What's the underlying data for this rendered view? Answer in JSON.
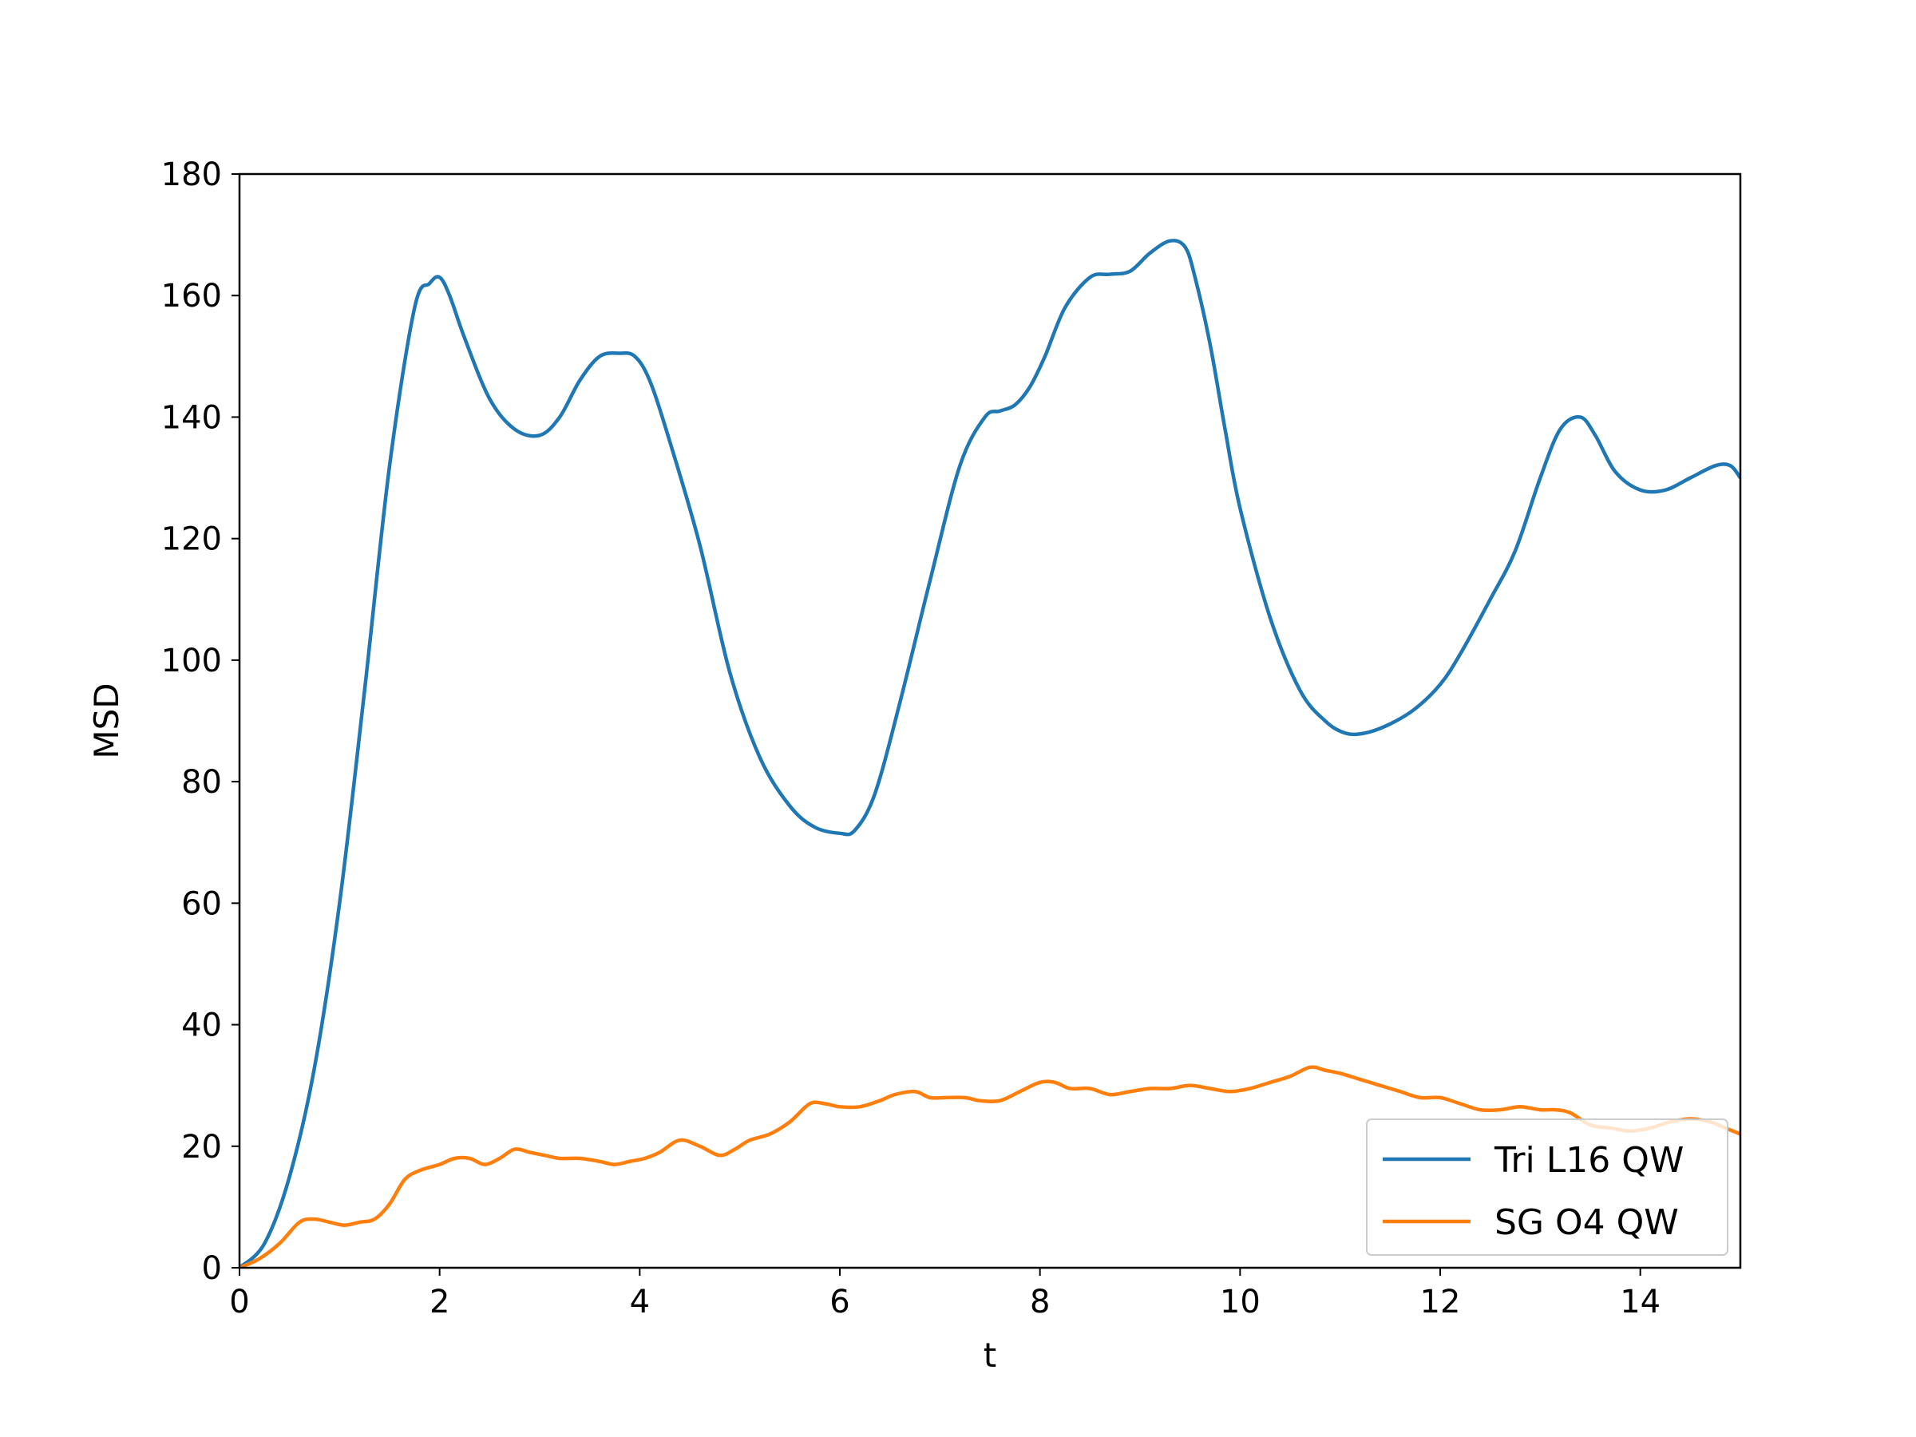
{
  "chart_data": {
    "type": "line",
    "title": "",
    "xlabel": "t",
    "ylabel": "MSD",
    "xlim": [
      0,
      15
    ],
    "ylim": [
      0,
      180
    ],
    "xticks": [
      0,
      2,
      4,
      6,
      8,
      10,
      12,
      14
    ],
    "yticks": [
      0,
      20,
      40,
      60,
      80,
      100,
      120,
      140,
      160,
      180
    ],
    "grid": false,
    "legend_position": "lower-right",
    "series": [
      {
        "name": "Tri L16 QW",
        "color": "#1f77b4",
        "x": [
          0,
          0.25,
          0.5,
          0.75,
          1.0,
          1.25,
          1.5,
          1.75,
          1.9,
          2.0,
          2.1,
          2.25,
          2.5,
          2.75,
          3.0,
          3.2,
          3.4,
          3.6,
          3.8,
          3.95,
          4.1,
          4.3,
          4.6,
          4.9,
          5.2,
          5.5,
          5.75,
          6.0,
          6.15,
          6.35,
          6.6,
          6.9,
          7.2,
          7.45,
          7.6,
          7.75,
          7.9,
          8.05,
          8.25,
          8.5,
          8.7,
          8.9,
          9.1,
          9.3,
          9.45,
          9.55,
          9.7,
          9.85,
          10.0,
          10.3,
          10.6,
          10.85,
          11.05,
          11.25,
          11.5,
          11.75,
          12.0,
          12.2,
          12.5,
          12.75,
          13.0,
          13.2,
          13.4,
          13.55,
          13.75,
          14.0,
          14.25,
          14.5,
          14.75,
          14.9,
          15.0
        ],
        "y": [
          0,
          4,
          15,
          33,
          60,
          95,
          132,
          158,
          162,
          163,
          160,
          153,
          143,
          138,
          137,
          140,
          146,
          150,
          150.5,
          150,
          146,
          136,
          119,
          98,
          84,
          76,
          72.5,
          71.5,
          72,
          78,
          93,
          113,
          132,
          140,
          141,
          142,
          145,
          150,
          158,
          163,
          163.5,
          164,
          167,
          169,
          168,
          163,
          152,
          138,
          125,
          107,
          95,
          90,
          88,
          88,
          89.5,
          92,
          96,
          101,
          110,
          118,
          130,
          138,
          140,
          137,
          131,
          128,
          128,
          130,
          132,
          132,
          130
        ]
      },
      {
        "name": "SG O4 QW",
        "color": "#ff7f0e",
        "x": [
          0,
          0.2,
          0.4,
          0.6,
          0.75,
          0.9,
          1.05,
          1.2,
          1.35,
          1.5,
          1.65,
          1.8,
          2.0,
          2.15,
          2.3,
          2.45,
          2.6,
          2.75,
          2.9,
          3.05,
          3.2,
          3.4,
          3.6,
          3.75,
          3.9,
          4.05,
          4.2,
          4.4,
          4.6,
          4.8,
          4.95,
          5.1,
          5.3,
          5.5,
          5.7,
          5.85,
          6.0,
          6.2,
          6.4,
          6.55,
          6.75,
          6.9,
          7.05,
          7.25,
          7.4,
          7.6,
          7.8,
          8.0,
          8.15,
          8.3,
          8.5,
          8.7,
          8.9,
          9.1,
          9.3,
          9.5,
          9.7,
          9.9,
          10.1,
          10.3,
          10.5,
          10.7,
          10.85,
          11.0,
          11.2,
          11.4,
          11.6,
          11.8,
          12.0,
          12.2,
          12.4,
          12.6,
          12.8,
          13.0,
          13.15,
          13.3,
          13.5,
          13.7,
          13.9,
          14.1,
          14.3,
          14.5,
          14.7,
          14.85,
          15.0
        ],
        "y": [
          0,
          1.5,
          4,
          7.5,
          8,
          7.5,
          7,
          7.5,
          8,
          10.5,
          14.5,
          16,
          17,
          18,
          18,
          17,
          18,
          19.5,
          19,
          18.5,
          18,
          18,
          17.5,
          17,
          17.5,
          18,
          19,
          21,
          20,
          18.5,
          19.5,
          21,
          22,
          24,
          27,
          27,
          26.5,
          26.5,
          27.5,
          28.5,
          29,
          28,
          28,
          28,
          27.5,
          27.5,
          29,
          30.5,
          30.5,
          29.5,
          29.5,
          28.5,
          29,
          29.5,
          29.5,
          30,
          29.5,
          29,
          29.5,
          30.5,
          31.5,
          33,
          32.5,
          32,
          31,
          30,
          29,
          28,
          28,
          27,
          26,
          26,
          26.5,
          26,
          26,
          25.5,
          23.5,
          23,
          22.5,
          23,
          24,
          24.5,
          24,
          23,
          22
        ]
      }
    ]
  }
}
